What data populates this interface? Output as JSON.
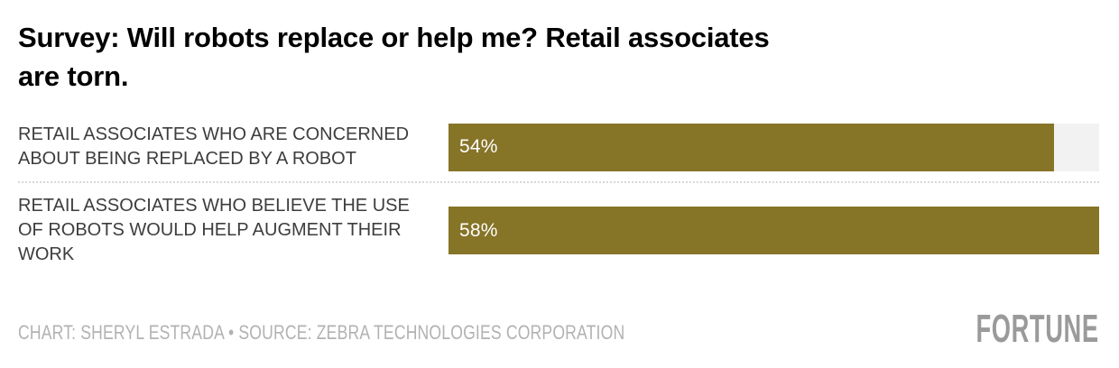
{
  "title_display": "Survey: Will robots replace or help me? Retail associates\nare torn.",
  "chart_data": {
    "type": "bar",
    "orientation": "horizontal",
    "title": "Survey: Will robots replace or help me? Retail associates are torn.",
    "categories": [
      "RETAIL ASSOCIATES WHO ARE CONCERNED ABOUT BEING REPLACED BY A ROBOT",
      "RETAIL ASSOCIATES WHO BELIEVE THE USE OF ROBOTS WOULD HELP AUGMENT THEIR WORK"
    ],
    "values": [
      54,
      58
    ],
    "value_labels": [
      "54%",
      "58%"
    ],
    "xlim": [
      0,
      58
    ],
    "grid": false,
    "legend": false,
    "bar_color": "#867427",
    "track_color": "#f2f2f2"
  },
  "rows": [
    {
      "label": "RETAIL ASSOCIATES WHO ARE CONCERNED\nABOUT BEING REPLACED BY A ROBOT",
      "value_label": "54%"
    },
    {
      "label": "RETAIL ASSOCIATES WHO BELIEVE THE USE\nOF ROBOTS WOULD HELP AUGMENT THEIR\nWORK",
      "value_label": "58%"
    }
  ],
  "footer": {
    "credit": "CHART: SHERYL ESTRADA • SOURCE: ZEBRA TECHNOLOGIES CORPORATION",
    "logo": "FORTUNE"
  }
}
